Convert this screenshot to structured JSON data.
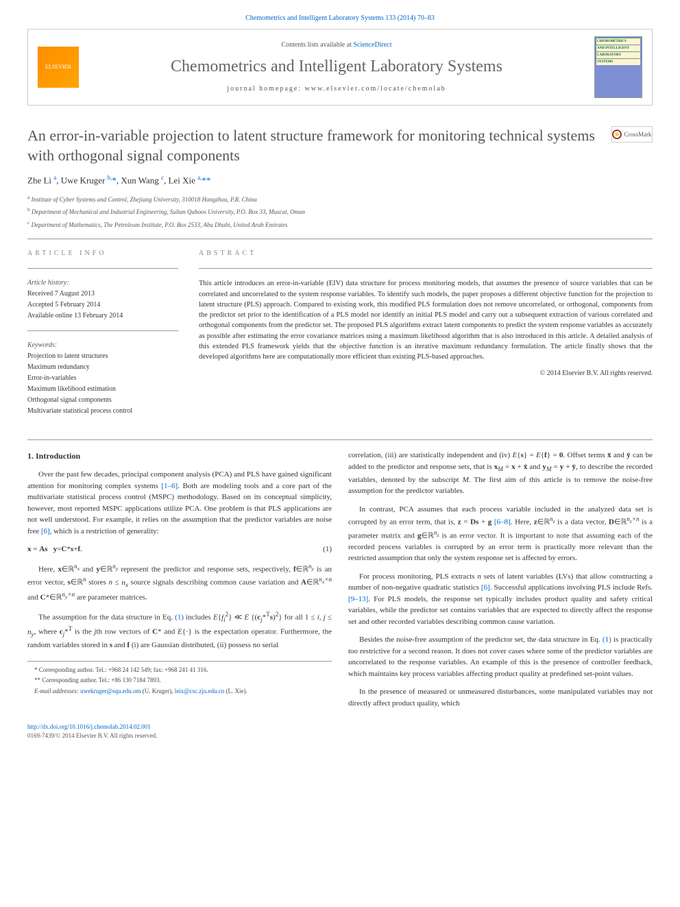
{
  "header": {
    "top_link": "Chemometrics and Intelligent Laboratory Systems 133 (2014) 70–83",
    "contents_prefix": "Contents lists available at ",
    "contents_link": "ScienceDirect",
    "journal_title": "Chemometrics and Intelligent Laboratory Systems",
    "homepage_prefix": "journal homepage: ",
    "homepage_url": "www.elsevier.com/locate/chemolab",
    "elsevier": "ELSEVIER",
    "cover_lines": [
      "CHEMOMETRICS",
      "AND INTELLIGENT",
      "LABORATORY",
      "SYSTEMS"
    ]
  },
  "article": {
    "title": "An error-in-variable projection to latent structure framework for monitoring technical systems with orthogonal signal components",
    "crossmark": "CrossMark",
    "authors_html": "Zhe Li <sup>a</sup>, Uwe Kruger <sup>b,</sup><span class=\"corr\">*</span>, Xun Wang <sup>c</sup>, Lei Xie <sup>a,</sup><span class=\"corr\">**</span>",
    "affiliations": [
      "a Institute of Cyber Systems and Control, Zhejiang University, 310018 Hangzhou, P.R. China",
      "b Department of Mechanical and Industrial Engineering, Sultan Qaboos University, P.O. Box 33, Muscat, Oman",
      "c Department of Mathematics, The Petroleum Institute, P.O. Box 2533, Abu Dhabi, United Arab Emirates"
    ]
  },
  "info": {
    "section_label": "ARTICLE INFO",
    "history_label": "Article history:",
    "history": [
      "Received 7 August 2013",
      "Accepted 5 February 2014",
      "Available online 13 February 2014"
    ],
    "keywords_label": "Keywords:",
    "keywords": [
      "Projection to latent structures",
      "Maximum redundancy",
      "Error-in-variables",
      "Maximum likelihood estimation",
      "Orthogonal signal components",
      "Multivariate statistical process control"
    ]
  },
  "abstract": {
    "section_label": "ABSTRACT",
    "text": "This article introduces an error-in-variable (EIV) data structure for process monitoring models, that assumes the presence of source variables that can be correlated and uncorrelated to the system response variables. To identify such models, the paper proposes a different objective function for the projection to latent structure (PLS) approach. Compared to existing work, this modified PLS formulation does not remove uncorrelated, or orthogonal, components from the predictor set prior to the identification of a PLS model nor identify an initial PLS model and carry out a subsequent extraction of various correlated and orthogonal components from the predictor set. The proposed PLS algorithms extract latent components to predict the system response variables as accurately as possible after estimating the error covariance matrices using a maximum likelihood algorithm that is also introduced in this article. A detailed analysis of this extended PLS framework yields that the objective function is an iterative maximum redundancy formulation. The article finally shows that the developed algorithms here are computationally more efficient than existing PLS-based approaches.",
    "copyright": "© 2014 Elsevier B.V. All rights reserved."
  },
  "body": {
    "intro_heading": "1. Introduction",
    "p1": "Over the past few decades, principal component analysis (PCA) and PLS have gained significant attention for monitoring complex systems [1–6]. Both are modeling tools and a core part of the multivariate statistical process control (MSPC) methodology. Based on its conceptual simplicity, however, most reported MSPC applications utilize PCA. One problem is that PLS applications are not well understood. For example, it relies on the assumption that the predictor variables are noise free [6], which is a restriction of generality:",
    "eq1": "x = As   y = C*s + f.",
    "eq1_num": "(1)",
    "p2": "Here, x∈ℝⁿˣ and y∈ℝⁿʸ represent the predictor and response sets, respectively, f∈ℝⁿʸ is an error vector, s∈ℝⁿ stores n ≤ nₓ source signals describing common cause variation and A∈ℝⁿˣ×ⁿ and C*∈ℝⁿʸ×ⁿ are parameter matrices.",
    "p3": "The assumption for the data structure in Eq. (1) includes E{fᵢ²} ≪ E{(cⱼ*ᵀs)²} for all 1 ≤ i, j ≤ nᵧ, where cⱼ*ᵀ is the jth row vectors of C* and E{·} is the expectation operator. Furthermore, the random variables stored in s and f (i) are Gaussian distributed, (ii) possess no serial",
    "p4": "correlation, (iii) are statistically independent and (iv) E{s} = E{f} = 0. Offset terms x̄ and ȳ can be added to the predictor and response sets, that is xₘ = x + x̄ and yₘ = y + ȳ, to describe the recorded variables, denoted by the subscript M. The first aim of this article is to remove the noise-free assumption for the predictor variables.",
    "p5": "In contrast, PCA assumes that each process variable included in the analyzed data set is corrupted by an error term, that is, z = Ds + g [6–8]. Here, z∈ℝⁿᶻ is a data vector, D∈ℝⁿᶻ×ⁿ is a parameter matrix and g∈ℝⁿᶻ is an error vector. It is important to note that assuming each of the recorded process variables is corrupted by an error term is practically more relevant than the restricted assumption that only the system response set is affected by errors.",
    "p6": "For process monitoring, PLS extracts n sets of latent variables (LVs) that allow constructing a number of non-negative quadratic statistics [6]. Successful applications involving PLS include Refs. [9–13]. For PLS models, the response set typically includes product quality and safety critical variables, while the predictor set contains variables that are expected to directly affect the response set and other recorded variables describing common cause variation.",
    "p7": "Besides the noise-free assumption of the predictor set, the data structure in Eq. (1) is practically too restrictive for a second reason. It does not cover cases where some of the predictor variables are uncorrelated to the response variables. An example of this is the presence of controller feedback, which maintains key process variables affecting product quality at predefined set-point values.",
    "p8": "In the presence of measured or unmeasured disturbances, some manipulated variables may not directly affect product quality, which",
    "ref_1_6": "[1–6]",
    "ref_6": "[6]",
    "ref_6_8": "[6–8]",
    "ref_9_13": "[9–13]",
    "eq_link_1": "(1)"
  },
  "footnotes": {
    "f1": "* Corresponding author. Tel.: +968 24 142 549; fax: +968 241 41 316.",
    "f2": "** Corresponding author. Tel.: +86 130 7184 7893.",
    "email_label": "E-mail addresses: ",
    "email1": "uwekruger@squ.edu.om",
    "email1_name": " (U. Kruger), ",
    "email2": "leix@csc.zju.edu.cn",
    "email2_name": " (L. Xie)."
  },
  "footer": {
    "doi": "http://dx.doi.org/10.1016/j.chemolab.2014.02.001",
    "issn": "0169-7439/© 2014 Elsevier B.V. All rights reserved."
  },
  "colors": {
    "link": "#0066cc",
    "text": "#333333",
    "muted": "#555555",
    "rule": "#999999"
  }
}
